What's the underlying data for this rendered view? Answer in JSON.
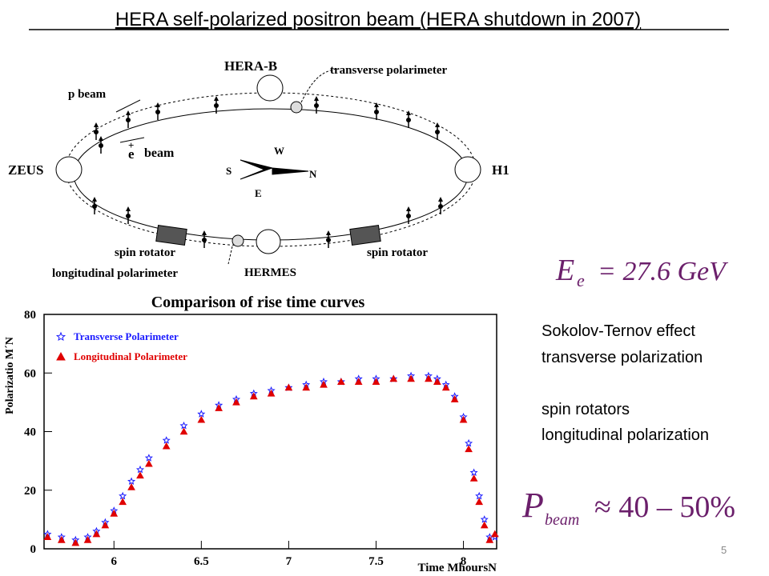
{
  "title": "HERA self-polarized positron beam (HERA shutdown in 2007)",
  "diagram": {
    "labels": [
      "HERA-B",
      "transverse polarimeter",
      "p beam",
      "e",
      "+",
      "beam",
      "ZEUS",
      "H1",
      "S",
      "W",
      "N",
      "E",
      "spin rotator",
      "spin rotator",
      "longitudinal polarimeter",
      "HERMES"
    ]
  },
  "energy": {
    "symbol": "E",
    "subscript": "e",
    "rest": "= 27.6 GeV"
  },
  "notes": [
    "Sokolov-Ternov effect",
    "transverse polarization",
    "spin rotators",
    "longitudinal polarization"
  ],
  "polarization": {
    "symbol": "P",
    "subscript": "beam",
    "rest": "≈ 40 – 50%"
  },
  "page_number": "5",
  "chart_data": {
    "type": "scatter",
    "title": "Comparison of rise time curves",
    "xlabel": "Time MhoursN",
    "ylabel": "Polarizatio M´N",
    "x": [
      5.62,
      5.7,
      5.78,
      5.85,
      5.9,
      5.95,
      6,
      6.05,
      6.1,
      6.15,
      6.2,
      6.3,
      6.4,
      6.5,
      6.6,
      6.7,
      6.8,
      6.9,
      7,
      7.1,
      7.2,
      7.3,
      7.4,
      7.5,
      7.6,
      7.7,
      7.8,
      7.85,
      7.9,
      7.95,
      8,
      8.03,
      8.06,
      8.09,
      8.12,
      8.15,
      8.18
    ],
    "series": [
      {
        "name": "Transverse Polarimeter",
        "color": "#1a1aff",
        "marker": "star",
        "values": [
          5,
          4,
          3,
          4,
          6,
          9,
          13,
          18,
          23,
          27,
          31,
          37,
          42,
          46,
          49,
          51,
          53,
          54,
          55,
          56,
          57,
          57,
          58,
          58,
          58,
          59,
          59,
          58,
          56,
          52,
          45,
          36,
          26,
          18,
          10,
          4,
          4
        ]
      },
      {
        "name": "Longitudinal Polarimeter",
        "color": "#e00000",
        "marker": "triangle",
        "values": [
          4,
          3,
          2,
          3,
          5,
          8,
          12,
          16,
          21,
          25,
          29,
          35,
          40,
          44,
          48,
          50,
          52,
          53,
          55,
          55,
          56,
          57,
          57,
          57,
          58,
          58,
          58,
          57,
          55,
          51,
          44,
          34,
          24,
          16,
          8,
          3,
          5
        ]
      }
    ],
    "xlim": [
      5.6,
      8.19
    ],
    "ylim": [
      0,
      80
    ],
    "xticks": [
      6,
      6.5,
      7,
      7.5,
      8
    ],
    "yticks": [
      0,
      20,
      40,
      60,
      80
    ]
  }
}
